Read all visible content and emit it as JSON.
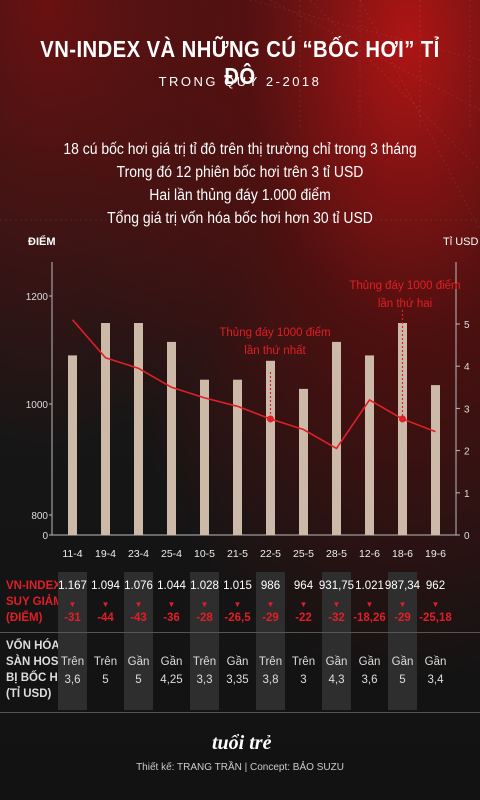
{
  "header": {
    "title": "VN-INDEX VÀ NHỮNG CÚ “BỐC HƠI” TỈ ĐÔ",
    "subtitle": "TRONG QUÝ 2-2018"
  },
  "facts": [
    "18 cú bốc hơi giá trị tỉ đô trên thị trường chỉ trong 3 tháng",
    "Trong đó 12 phiên bốc hơi trên 3 tỉ USD",
    "Hai lần thủng đáy 1.000 điểm",
    "Tổng giá trị vốn hóa bốc hơi hơn 30 tỉ USD"
  ],
  "chart_data": {
    "type": "bar+line",
    "categories": [
      "11-4",
      "19-4",
      "23-4",
      "25-4",
      "10-5",
      "21-5",
      "22-5",
      "25-5",
      "28-5",
      "12-6",
      "18-6",
      "19-6"
    ],
    "series": [
      {
        "kind": "bar",
        "values": [
          1167,
          1094,
          1076,
          1044,
          1028,
          1015,
          986,
          964,
          931.75,
          1021,
          987.34,
          962
        ]
      },
      {
        "kind": "line",
        "values": [
          3.6,
          5,
          5,
          4.25,
          3.3,
          3.35,
          3.8,
          3,
          4.3,
          3.6,
          5,
          3.4
        ]
      }
    ],
    "bar_heights_points": [
      1090,
      1150,
      1150,
      1115,
      1045,
      1045,
      1080,
      1028,
      1115,
      1090,
      1150,
      1035
    ],
    "line_values_usd": [
      5.1,
      4.2,
      3.95,
      3.5,
      3.25,
      3.05,
      2.75,
      2.5,
      2.05,
      3.2,
      2.75,
      2.45
    ],
    "y_left": {
      "label": "ĐIỂM",
      "ticks": [
        "1200",
        "1000",
        "800",
        "0"
      ]
    },
    "y_right": {
      "label": "Tỉ USD",
      "ticks": [
        "5",
        "4",
        "3",
        "2",
        "1",
        "0"
      ],
      "range": [
        0,
        5.5
      ]
    },
    "annotations": [
      {
        "text": "Thủng đáy 1000 điểm lần thứ nhất",
        "category": "22-5"
      },
      {
        "text": "Thủng đáy 1000 điểm lần thứ hai",
        "category": "18-6"
      }
    ]
  },
  "table": {
    "row1_label": [
      "VN-INDEX",
      "SUY GIẢM",
      "(ĐIỂM)"
    ],
    "row2_label": [
      "VỐN HÓA",
      "SÀN HOSE",
      "BỊ BỐC HƠI",
      "(TỈ USD)"
    ],
    "index_values": [
      "1.167",
      "1.094",
      "1.076",
      "1.044",
      "1.028",
      "1.015",
      "986",
      "964",
      "931,75",
      "1.021",
      "987,34",
      "962"
    ],
    "declines": [
      "-31",
      "-44",
      "-43",
      "-36",
      "-28",
      "-26,5",
      "-29",
      "-22",
      "-32",
      "-18,26",
      "-29",
      "-25,18"
    ],
    "cap_prefix": [
      "Trên",
      "Trên",
      "Gần",
      "Gần",
      "Trên",
      "Gần",
      "Trên",
      "Trên",
      "Gần",
      "Gần",
      "Gần",
      "Gần"
    ],
    "cap_values": [
      "3,6",
      "5",
      "5",
      "4,25",
      "3,3",
      "3,35",
      "3,8",
      "3",
      "4,3",
      "3,6",
      "5",
      "3,4"
    ]
  },
  "footer": {
    "credit": "Thiết kế: TRANG TRẦN | Concept: BẢO SUZU",
    "logo": "tuổi trẻ"
  },
  "colors": {
    "bar": "#cdb9a8",
    "line": "#e01f26",
    "accent": "#e01f26",
    "band": "#2e2e2e"
  }
}
